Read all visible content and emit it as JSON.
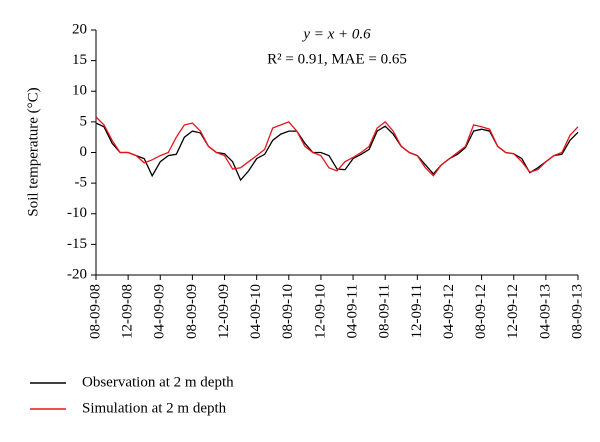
{
  "chart_data": {
    "type": "line",
    "annotations": [
      "y = x + 0.6",
      "R² = 0.91, MAE = 0.65"
    ],
    "y_label": "Soil temperature (°C)",
    "categories": [
      "08-09-08",
      null,
      null,
      null,
      "12-09-08",
      null,
      null,
      null,
      "04-09-09",
      null,
      null,
      null,
      "08-09-09",
      null,
      null,
      null,
      "12-09-09",
      null,
      null,
      null,
      "04-09-10",
      null,
      null,
      null,
      "08-09-10",
      null,
      null,
      null,
      "12-09-10",
      null,
      null,
      null,
      "04-09-11",
      null,
      null,
      null,
      "08-09-11",
      null,
      null,
      null,
      "12-09-11",
      null,
      null,
      null,
      "04-09-12",
      null,
      null,
      null,
      "08-09-12",
      null,
      null,
      null,
      "12-09-12",
      null,
      null,
      null,
      "04-09-13",
      null,
      null,
      null,
      "08-09-13"
    ],
    "series": [
      {
        "name": "Observation at 2 m depth",
        "color": "#000000",
        "values": [
          4.8,
          4.2,
          1.5,
          0,
          0,
          -0.5,
          -1,
          -3.8,
          -1.5,
          -0.5,
          -0.3,
          2.5,
          3.5,
          3.2,
          1,
          0,
          -0.2,
          -1.5,
          -4.5,
          -3,
          -1,
          -0.3,
          2,
          3,
          3.5,
          3.5,
          1.5,
          0,
          0,
          -0.5,
          -2.7,
          -2.8,
          -1,
          -0.3,
          0.5,
          3.5,
          4.3,
          3,
          1,
          0,
          -0.5,
          -2,
          -3.5,
          -2,
          -1,
          -0.3,
          0.8,
          3.5,
          3.8,
          3.5,
          1,
          0,
          -0.2,
          -1,
          -3.3,
          -2.5,
          -1.5,
          -0.5,
          -0.3,
          2,
          3.3
        ]
      },
      {
        "name": "Simulation at 2 m depth",
        "color": "#e8141c",
        "values": [
          5.8,
          4.5,
          2,
          0,
          0,
          -0.5,
          -1.7,
          -1.2,
          -0.5,
          0,
          2.5,
          4.5,
          4.8,
          3.5,
          1,
          0,
          -0.5,
          -2.7,
          -2.5,
          -1.5,
          -0.5,
          0.5,
          4,
          4.5,
          5,
          3.5,
          1,
          0,
          -0.5,
          -2.5,
          -3,
          -1.5,
          -0.8,
          0,
          1,
          4,
          5,
          3.5,
          1,
          0,
          -0.5,
          -2.5,
          -3.8,
          -2,
          -1,
          0,
          1,
          4.5,
          4.2,
          3.8,
          1,
          0,
          -0.2,
          -1.5,
          -3.2,
          -2.8,
          -1.5,
          -0.5,
          0,
          2.8,
          4.2
        ]
      }
    ],
    "ylim": [
      -20,
      20
    ],
    "yticks": [
      -20,
      -15,
      -10,
      -5,
      0,
      5,
      10,
      15,
      20
    ],
    "grid": false,
    "legend": "bottom-left"
  }
}
